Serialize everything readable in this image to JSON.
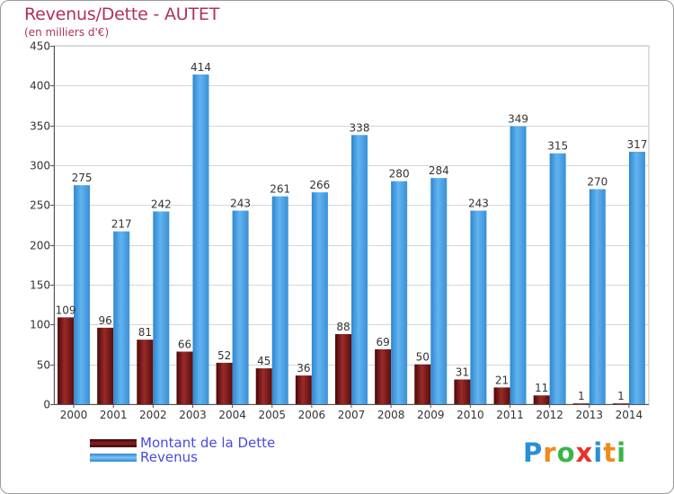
{
  "header": {
    "title": "Revenus/Dette - AUTET",
    "subtitle": "(en milliers d'€)"
  },
  "colors": {
    "dette": "#7a1c1c",
    "revenus": "#4aa3e6",
    "title": "#b0305a",
    "legend_text": "#4a4ae0"
  },
  "legend": {
    "items": [
      {
        "label": "Montant de la Dette",
        "color": "#6b1010"
      },
      {
        "label": "Revenus",
        "color": "#4aa3e6"
      }
    ]
  },
  "logo": {
    "text": "Proxiti"
  },
  "chart_data": {
    "type": "bar",
    "title": "Revenus/Dette - AUTET",
    "subtitle": "(en milliers d'€)",
    "categories": [
      "2000",
      "2001",
      "2002",
      "2003",
      "2004",
      "2005",
      "2006",
      "2007",
      "2008",
      "2009",
      "2010",
      "2011",
      "2012",
      "2013",
      "2014"
    ],
    "series": [
      {
        "name": "Montant de la Dette",
        "values": [
          109,
          96,
          81,
          66,
          52,
          45,
          36,
          88,
          69,
          50,
          31,
          21,
          11,
          1,
          1
        ]
      },
      {
        "name": "Revenus",
        "values": [
          275,
          217,
          242,
          414,
          243,
          261,
          266,
          338,
          280,
          284,
          243,
          349,
          315,
          270,
          317
        ]
      }
    ],
    "yticks": [
      0,
      50,
      100,
      150,
      200,
      250,
      300,
      350,
      400,
      450
    ],
    "ylim": [
      0,
      450
    ],
    "grid": true,
    "legend_position": "bottom-left"
  }
}
